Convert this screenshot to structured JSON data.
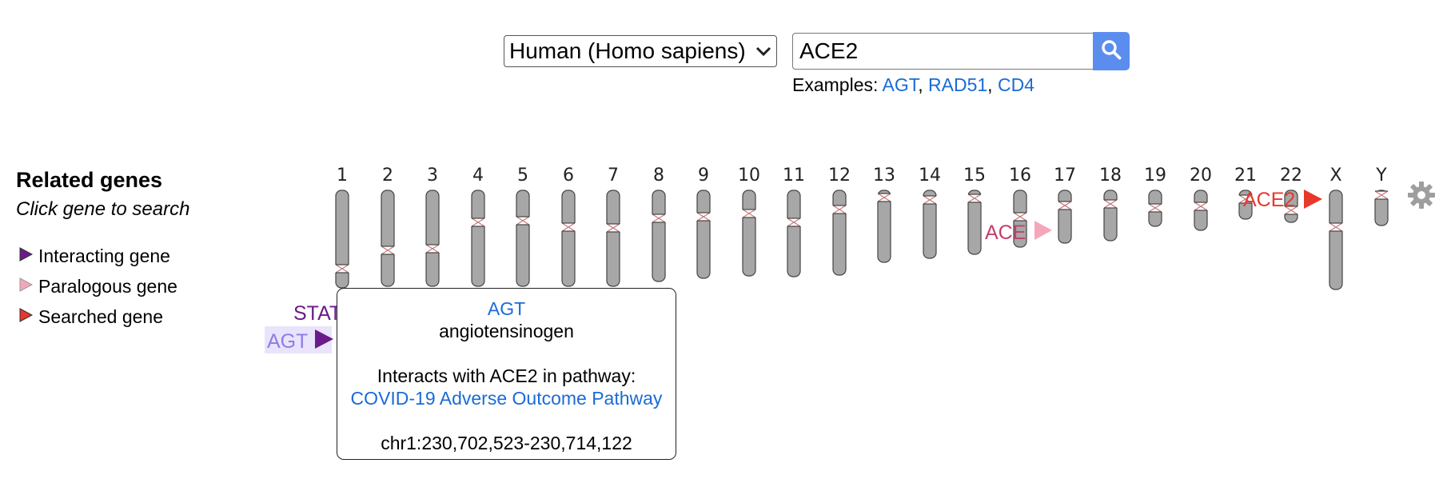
{
  "search": {
    "species_selected": "Human (Homo sapiens)",
    "query": "ACE2",
    "examples_label": "Examples:",
    "examples": [
      "AGT",
      "RAD51",
      "CD4"
    ]
  },
  "legend": {
    "title": "Related genes",
    "subtitle": "Click gene to search",
    "items": [
      {
        "label": "Interacting gene",
        "color": "#6a1b8a"
      },
      {
        "label": "Paralogous gene",
        "color": "#f4a7b9"
      },
      {
        "label": "Searched gene",
        "color": "#e8372b"
      }
    ]
  },
  "chromosomes": [
    "1",
    "2",
    "3",
    "4",
    "5",
    "6",
    "7",
    "8",
    "9",
    "10",
    "11",
    "12",
    "13",
    "14",
    "15",
    "16",
    "17",
    "18",
    "19",
    "20",
    "21",
    "22",
    "X",
    "Y"
  ],
  "genes": {
    "searched": {
      "label": "ACE2",
      "color": "#e8372b"
    },
    "paralog": {
      "label": "ACE",
      "color": "#c2406b"
    },
    "interacting": {
      "label": "AGT",
      "color": "#6a1b8a"
    },
    "partial": {
      "label": "STAT"
    }
  },
  "tooltip": {
    "gene": "AGT",
    "description": "angiotensinogen",
    "interacts_text": "Interacts with ACE2 in pathway:",
    "pathway": "COVID-19 Adverse Outcome Pathway",
    "location": "chr1:230,702,523-230,714,122"
  },
  "colors": {
    "chromosome_fill": "#a7a7a7",
    "centromere": "#c77a7a",
    "search_button": "#5b8def",
    "link": "#1a6bd6"
  },
  "icons": [
    "search-icon",
    "chevron-down-icon",
    "gear-icon",
    "triangle-marker-icon"
  ]
}
